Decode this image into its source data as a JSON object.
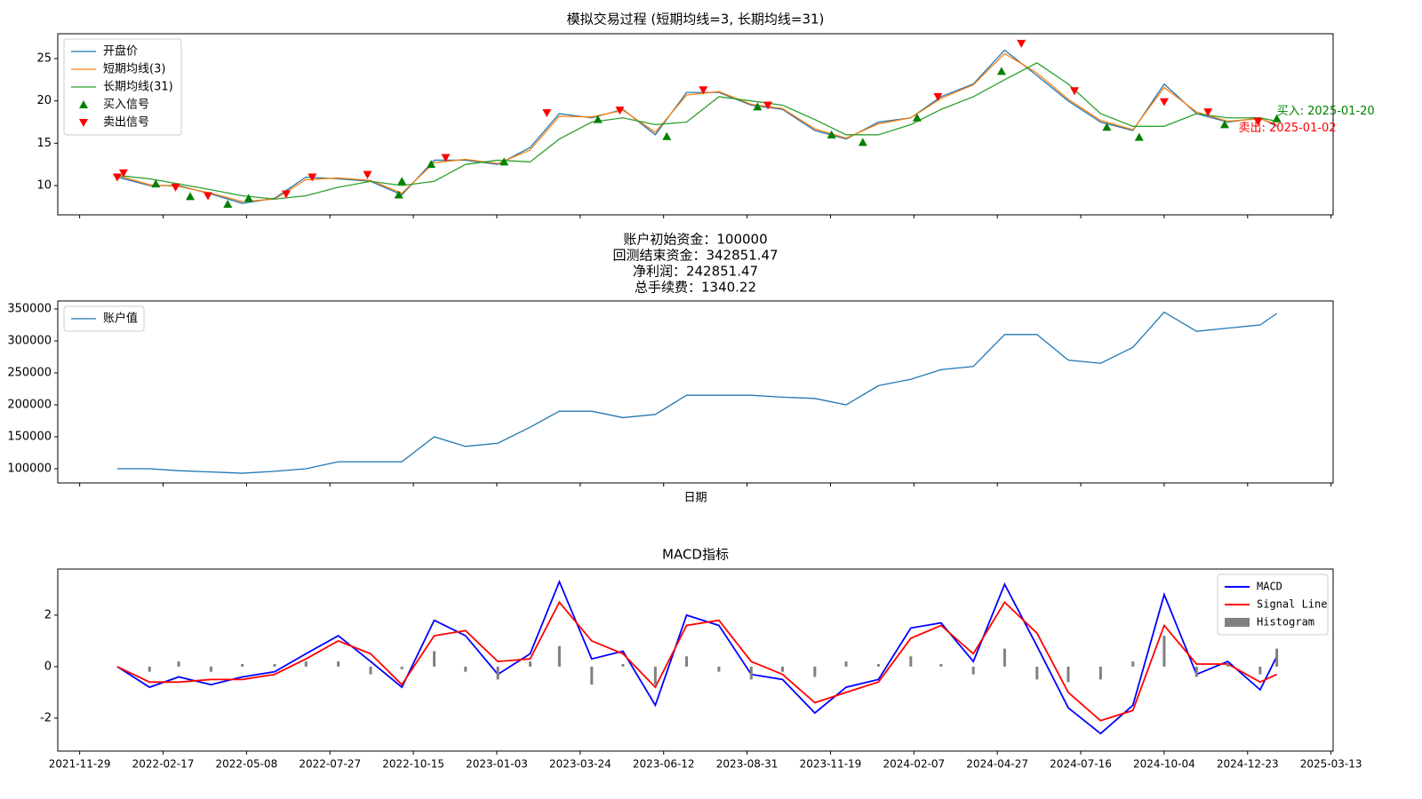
{
  "chart_data": [
    {
      "type": "line",
      "title": "模拟交易过程 (短期均线=3, 长期均线=31)",
      "legend": "upper left",
      "xlim": [
        "2021-11-08",
        "2025-03-15"
      ],
      "ylim": [
        6.54,
        27.94
      ],
      "yticks": [
        10,
        15,
        20,
        25
      ],
      "x": [
        "2022-01-04",
        "2022-02-04",
        "2022-03-04",
        "2022-04-04",
        "2022-05-04",
        "2022-06-04",
        "2022-07-04",
        "2022-08-04",
        "2022-09-04",
        "2022-10-04",
        "2022-11-04",
        "2022-12-04",
        "2023-01-04",
        "2023-02-04",
        "2023-03-04",
        "2023-04-04",
        "2023-05-04",
        "2023-06-04",
        "2023-07-04",
        "2023-08-04",
        "2023-09-04",
        "2023-10-04",
        "2023-11-04",
        "2023-12-04",
        "2024-01-04",
        "2024-02-04",
        "2024-03-04",
        "2024-04-04",
        "2024-05-04",
        "2024-06-04",
        "2024-07-04",
        "2024-08-04",
        "2024-09-04",
        "2024-10-04",
        "2024-11-04",
        "2024-12-04",
        "2025-01-04",
        "2025-01-20"
      ],
      "series": [
        {
          "name": "开盘价",
          "color": "#1f77b4",
          "values": [
            11.0,
            10.0,
            10.0,
            9.0,
            7.9,
            8.5,
            11.0,
            10.8,
            10.5,
            8.9,
            13.0,
            13.0,
            12.5,
            14.5,
            18.5,
            18.0,
            19.0,
            16.0,
            21.0,
            21.0,
            19.5,
            19.0,
            16.5,
            15.5,
            17.5,
            18.0,
            20.5,
            22.0,
            26.0,
            23.0,
            20.0,
            17.5,
            16.5,
            22.0,
            18.5,
            17.5,
            18.0,
            17.0
          ]
        },
        {
          "name": "短期均线(3)",
          "color": "#ff7f0e",
          "values": [
            11.2,
            10.1,
            9.9,
            9.1,
            8.1,
            8.4,
            10.7,
            10.9,
            10.6,
            9.1,
            12.7,
            13.1,
            12.6,
            14.2,
            18.2,
            18.1,
            18.9,
            16.3,
            20.7,
            21.1,
            19.6,
            19.1,
            16.7,
            15.6,
            17.3,
            18.0,
            20.3,
            21.9,
            25.6,
            23.3,
            20.2,
            17.7,
            16.6,
            21.6,
            18.7,
            17.6,
            17.9,
            17.2
          ]
        },
        {
          "name": "长期均线(31)",
          "color": "#2ca02c",
          "values": [
            11.2,
            10.8,
            10.2,
            9.5,
            8.8,
            8.4,
            8.8,
            9.8,
            10.5,
            10.0,
            10.5,
            12.5,
            13.0,
            12.8,
            15.5,
            17.5,
            18.0,
            17.2,
            17.5,
            20.5,
            20.0,
            19.5,
            17.8,
            16.0,
            16.0,
            17.2,
            19.0,
            20.5,
            22.5,
            24.5,
            22.0,
            18.5,
            17.0,
            17.0,
            18.5,
            18.0,
            18.0,
            17.6
          ]
        },
        {
          "name": "买入信号",
          "color": "green",
          "marker": "^",
          "x": [
            "2022-02-10",
            "2022-03-15",
            "2022-04-20",
            "2022-05-10",
            "2022-10-01",
            "2022-10-04",
            "2022-11-01",
            "2023-01-10",
            "2023-04-10",
            "2023-06-15",
            "2023-09-10",
            "2023-11-20",
            "2023-12-20",
            "2024-02-10",
            "2024-05-01",
            "2024-08-10",
            "2024-09-10",
            "2024-12-01",
            "2025-01-20"
          ],
          "values": [
            10.2,
            8.7,
            7.8,
            8.5,
            8.9,
            10.5,
            12.5,
            12.8,
            17.8,
            15.8,
            19.3,
            16.0,
            15.1,
            18.0,
            23.5,
            16.9,
            15.7,
            17.2,
            17.9
          ]
        },
        {
          "name": "卖出信号",
          "color": "red",
          "marker": "v",
          "x": [
            "2022-01-04",
            "2022-01-10",
            "2022-03-01",
            "2022-04-01",
            "2022-06-15",
            "2022-07-10",
            "2022-09-01",
            "2022-11-15",
            "2023-02-20",
            "2023-05-01",
            "2023-07-20",
            "2023-09-20",
            "2024-03-01",
            "2024-05-20",
            "2024-07-10",
            "2024-10-04",
            "2024-11-15",
            "2025-01-02"
          ],
          "values": [
            11.0,
            11.5,
            9.8,
            8.8,
            9.0,
            11.0,
            11.3,
            13.3,
            18.6,
            18.9,
            21.3,
            19.5,
            20.5,
            26.8,
            21.2,
            19.9,
            18.7,
            17.6
          ]
        }
      ],
      "annotations": [
        {
          "text": "买入: 2025-01-20",
          "color": "green",
          "series": 3
        },
        {
          "text": "卖出: 2025-01-02",
          "color": "red",
          "series": 4
        }
      ]
    },
    {
      "type": "line",
      "title_lines": [
        "账户初始资金：100000",
        "回测结束资金：342851.47",
        "净利润：242851.47",
        "总手续费：1340.22"
      ],
      "xlabel": "日期",
      "legend": "upper left",
      "xlim": [
        "2021-11-08",
        "2025-03-15"
      ],
      "ylim": [
        77800,
        362500
      ],
      "yticks": [
        100000,
        150000,
        200000,
        250000,
        300000,
        350000
      ],
      "x": [
        "2022-01-04",
        "2022-02-04",
        "2022-03-04",
        "2022-04-04",
        "2022-05-04",
        "2022-06-04",
        "2022-07-04",
        "2022-08-04",
        "2022-09-04",
        "2022-10-04",
        "2022-11-04",
        "2022-12-04",
        "2023-01-04",
        "2023-02-04",
        "2023-03-04",
        "2023-04-04",
        "2023-05-04",
        "2023-06-04",
        "2023-07-04",
        "2023-08-04",
        "2023-09-04",
        "2023-10-04",
        "2023-11-04",
        "2023-12-04",
        "2024-01-04",
        "2024-02-04",
        "2024-03-04",
        "2024-04-04",
        "2024-05-04",
        "2024-06-04",
        "2024-07-04",
        "2024-08-04",
        "2024-09-04",
        "2024-10-04",
        "2024-11-04",
        "2024-12-04",
        "2025-01-04",
        "2025-01-20"
      ],
      "series": [
        {
          "name": "账户值",
          "color": "#1f77b4",
          "values": [
            100000,
            100000,
            97000,
            95000,
            93000,
            96000,
            100000,
            111000,
            111000,
            111000,
            150000,
            135000,
            140000,
            165000,
            190000,
            190000,
            180000,
            185000,
            215000,
            215000,
            215000,
            212000,
            210000,
            200000,
            230000,
            240000,
            255000,
            260000,
            310000,
            310000,
            270000,
            265000,
            290000,
            345000,
            315000,
            320000,
            325000,
            342851.47
          ]
        }
      ]
    },
    {
      "type": "line",
      "title": "MACD指标",
      "legend": "upper right",
      "xlim": [
        "2021-11-08",
        "2025-03-15"
      ],
      "ylim": [
        -3.28,
        3.79
      ],
      "yticks": [
        -2,
        0,
        2
      ],
      "xticks": [
        "2021-11-29",
        "2022-02-17",
        "2022-05-08",
        "2022-07-27",
        "2022-10-15",
        "2023-01-03",
        "2023-03-24",
        "2023-06-12",
        "2023-08-31",
        "2023-11-19",
        "2024-02-07",
        "2024-04-27",
        "2024-07-16",
        "2024-10-04",
        "2024-12-23",
        "2025-03-13"
      ],
      "x": [
        "2022-01-04",
        "2022-02-04",
        "2022-03-04",
        "2022-04-04",
        "2022-05-04",
        "2022-06-04",
        "2022-07-04",
        "2022-08-04",
        "2022-09-04",
        "2022-10-04",
        "2022-11-04",
        "2022-12-04",
        "2023-01-04",
        "2023-02-04",
        "2023-03-04",
        "2023-04-04",
        "2023-05-04",
        "2023-06-04",
        "2023-07-04",
        "2023-08-04",
        "2023-09-04",
        "2023-10-04",
        "2023-11-04",
        "2023-12-04",
        "2024-01-04",
        "2024-02-04",
        "2024-03-04",
        "2024-04-04",
        "2024-05-04",
        "2024-06-04",
        "2024-07-04",
        "2024-08-04",
        "2024-09-04",
        "2024-10-04",
        "2024-11-04",
        "2024-12-04",
        "2025-01-04",
        "2025-01-20"
      ],
      "series": [
        {
          "name": "MACD",
          "color": "blue",
          "values": [
            0.0,
            -0.8,
            -0.4,
            -0.7,
            -0.4,
            -0.2,
            0.5,
            1.2,
            0.2,
            -0.8,
            1.8,
            1.2,
            -0.3,
            0.5,
            3.3,
            0.3,
            0.6,
            -1.5,
            2.0,
            1.6,
            -0.3,
            -0.5,
            -1.8,
            -0.8,
            -0.5,
            1.5,
            1.7,
            0.2,
            3.2,
            0.8,
            -1.6,
            -2.6,
            -1.5,
            2.8,
            -0.3,
            0.2,
            -0.9,
            0.4
          ]
        },
        {
          "name": "Signal Line",
          "color": "red",
          "values": [
            0.0,
            -0.6,
            -0.6,
            -0.5,
            -0.5,
            -0.3,
            0.3,
            1.0,
            0.5,
            -0.7,
            1.2,
            1.4,
            0.2,
            0.3,
            2.5,
            1.0,
            0.5,
            -0.8,
            1.6,
            1.8,
            0.2,
            -0.3,
            -1.4,
            -1.0,
            -0.6,
            1.1,
            1.6,
            0.5,
            2.5,
            1.3,
            -1.0,
            -2.1,
            -1.7,
            1.6,
            0.1,
            0.1,
            -0.6,
            -0.3
          ]
        },
        {
          "name": "Histogram",
          "color": "gray",
          "bars": true,
          "values": [
            0,
            -0.2,
            0.2,
            -0.2,
            0.1,
            0.1,
            0.2,
            0.2,
            -0.3,
            -0.1,
            0.6,
            -0.2,
            -0.5,
            0.2,
            0.8,
            -0.7,
            0.1,
            -0.7,
            0.4,
            -0.2,
            -0.5,
            -0.2,
            -0.4,
            0.2,
            0.1,
            0.4,
            0.1,
            -0.3,
            0.7,
            -0.5,
            -0.6,
            -0.5,
            0.2,
            1.2,
            -0.4,
            0.1,
            -0.3,
            0.7
          ]
        }
      ]
    }
  ]
}
